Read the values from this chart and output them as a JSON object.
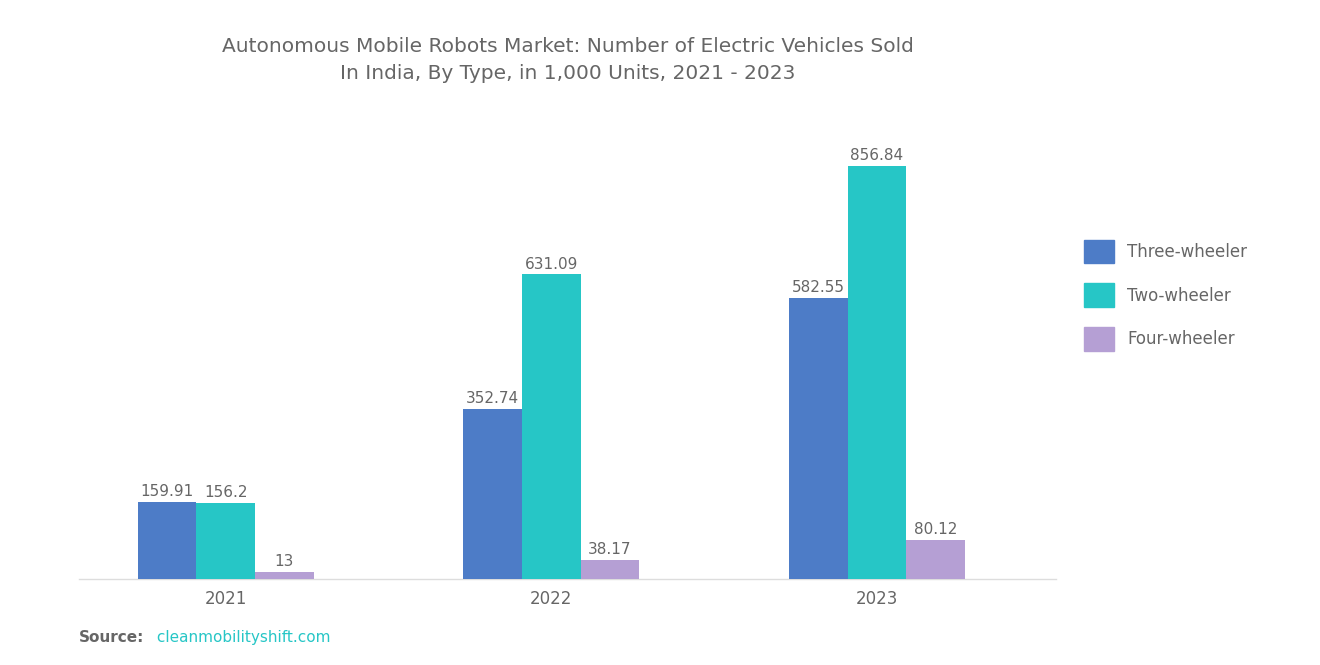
{
  "title": "Autonomous Mobile Robots Market: Number of Electric Vehicles Sold\nIn India, By Type, in 1,000 Units, 2021 - 2023",
  "years": [
    "2021",
    "2022",
    "2023"
  ],
  "series": {
    "Three-wheeler": [
      159.91,
      352.74,
      582.55
    ],
    "Two-wheeler": [
      156.2,
      631.09,
      856.84
    ],
    "Four-wheeler": [
      13,
      38.17,
      80.12
    ]
  },
  "colors": {
    "Three-wheeler": "#4D7CC7",
    "Two-wheeler": "#26C6C6",
    "Four-wheeler": "#B59FD4"
  },
  "value_labels": {
    "Three-wheeler": [
      "159.91",
      "352.74",
      "582.55"
    ],
    "Two-wheeler": [
      "156.2",
      "631.09",
      "856.84"
    ],
    "Four-wheeler": [
      "13",
      "38.17",
      "80.12"
    ]
  },
  "source_bold": "Source:",
  "source_url": " cleanmobilityshift.com",
  "source_url_color": "#26C6C6",
  "ylim": [
    0,
    980
  ],
  "bar_width": 0.18,
  "background_color": "#FFFFFF",
  "title_fontsize": 14.5,
  "tick_fontsize": 12,
  "legend_fontsize": 12,
  "value_fontsize": 11,
  "source_fontsize": 11,
  "text_color": "#666666"
}
